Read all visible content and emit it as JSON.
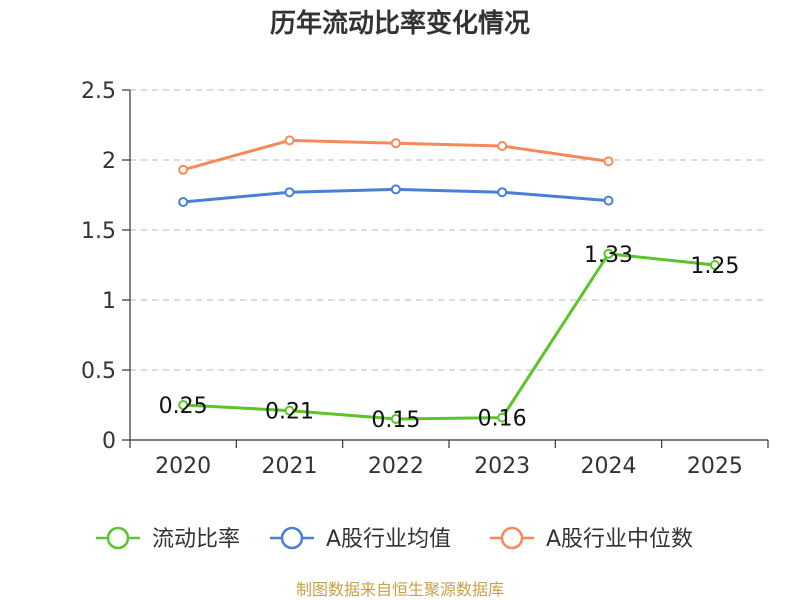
{
  "chart_data": {
    "type": "line",
    "title": "历年流动比率变化情况",
    "categories": [
      "2020",
      "2021",
      "2022",
      "2023",
      "2024",
      "2025"
    ],
    "ylim": [
      0,
      2.5
    ],
    "yticks": [
      "0",
      "0.5",
      "1",
      "1.5",
      "2",
      "2.5"
    ],
    "grid": true,
    "legend_position": "bottom",
    "series": [
      {
        "name": "流动比率",
        "color": "#5ac42a",
        "values": [
          0.25,
          0.21,
          0.15,
          0.16,
          1.33,
          1.25
        ],
        "labels": [
          "0.25",
          "0.21",
          "0.15",
          "0.16",
          "1.33",
          "1.25"
        ]
      },
      {
        "name": "A股行业均值",
        "color": "#4a7fd6",
        "values": [
          1.7,
          1.77,
          1.79,
          1.77,
          1.71,
          null
        ]
      },
      {
        "name": "A股行业中位数",
        "color": "#f5895a",
        "values": [
          1.93,
          2.14,
          2.12,
          2.1,
          1.99,
          null
        ]
      }
    ]
  },
  "footer": {
    "source": "制图数据来自恒生聚源数据库"
  }
}
